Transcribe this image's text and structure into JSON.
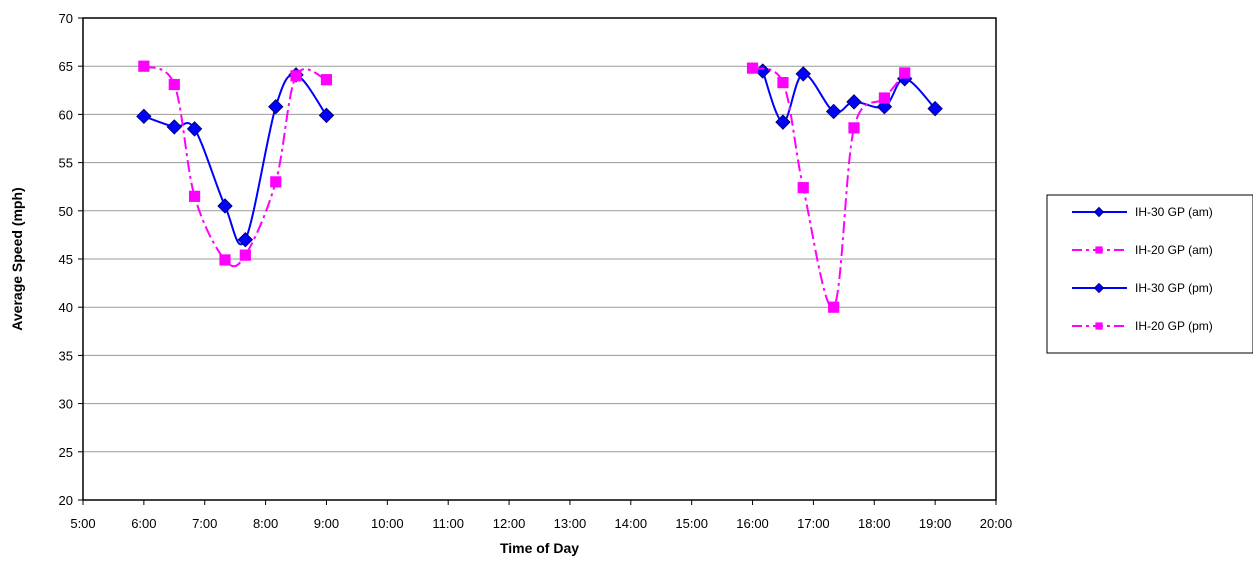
{
  "chart_data": {
    "type": "line",
    "xlabel": "Time of Day",
    "ylabel": "Average Speed (mph)",
    "xlim": [
      5,
      20
    ],
    "ylim": [
      20,
      70
    ],
    "x_ticks": [
      {
        "value": 5,
        "label": "5:00"
      },
      {
        "value": 6,
        "label": "6:00"
      },
      {
        "value": 7,
        "label": "7:00"
      },
      {
        "value": 8,
        "label": "8:00"
      },
      {
        "value": 9,
        "label": "9:00"
      },
      {
        "value": 10,
        "label": "10:00"
      },
      {
        "value": 11,
        "label": "11:00"
      },
      {
        "value": 12,
        "label": "12:00"
      },
      {
        "value": 13,
        "label": "13:00"
      },
      {
        "value": 14,
        "label": "14:00"
      },
      {
        "value": 15,
        "label": "15:00"
      },
      {
        "value": 16,
        "label": "16:00"
      },
      {
        "value": 17,
        "label": "17:00"
      },
      {
        "value": 18,
        "label": "18:00"
      },
      {
        "value": 19,
        "label": "19:00"
      },
      {
        "value": 20,
        "label": "20:00"
      }
    ],
    "y_ticks": [
      {
        "value": 20,
        "label": "20"
      },
      {
        "value": 25,
        "label": "25"
      },
      {
        "value": 30,
        "label": "30"
      },
      {
        "value": 35,
        "label": "35"
      },
      {
        "value": 40,
        "label": "40"
      },
      {
        "value": 45,
        "label": "45"
      },
      {
        "value": 50,
        "label": "50"
      },
      {
        "value": 55,
        "label": "55"
      },
      {
        "value": 60,
        "label": "60"
      },
      {
        "value": 65,
        "label": "65"
      },
      {
        "value": 70,
        "label": "70"
      }
    ],
    "grid": "horizontal",
    "legend_position": "right",
    "series": [
      {
        "name": "IH-30 GP (am)",
        "color": "#0000ff",
        "marker": "diamond",
        "line_style": "solid",
        "x": [
          6.0,
          6.5,
          6.833,
          7.333,
          7.667,
          8.167,
          8.5,
          9.0
        ],
        "y": [
          59.8,
          58.7,
          58.5,
          50.5,
          47.0,
          60.8,
          64.1,
          59.9
        ]
      },
      {
        "name": "IH-20 GP (am)",
        "color": "#ff00ff",
        "marker": "square",
        "line_style": "dashdot",
        "x": [
          6.0,
          6.5,
          6.833,
          7.333,
          7.667,
          8.167,
          8.5,
          9.0
        ],
        "y": [
          65.0,
          63.1,
          51.5,
          44.9,
          45.4,
          53.0,
          64.0,
          63.6
        ]
      },
      {
        "name": "IH-30 GP (pm)",
        "color": "#0000ff",
        "marker": "diamond",
        "line_style": "solid",
        "x": [
          16.167,
          16.5,
          16.833,
          17.333,
          17.667,
          18.167,
          18.5,
          19.0
        ],
        "y": [
          64.5,
          59.2,
          64.2,
          60.3,
          61.3,
          60.8,
          63.7,
          60.6
        ]
      },
      {
        "name": "IH-20 GP (pm)",
        "color": "#ff00ff",
        "marker": "square",
        "line_style": "dashdot",
        "x": [
          16.0,
          16.5,
          16.833,
          17.333,
          17.667,
          18.167,
          18.5
        ],
        "y": [
          64.8,
          63.3,
          52.4,
          40.0,
          58.6,
          61.7,
          64.3
        ]
      }
    ]
  }
}
